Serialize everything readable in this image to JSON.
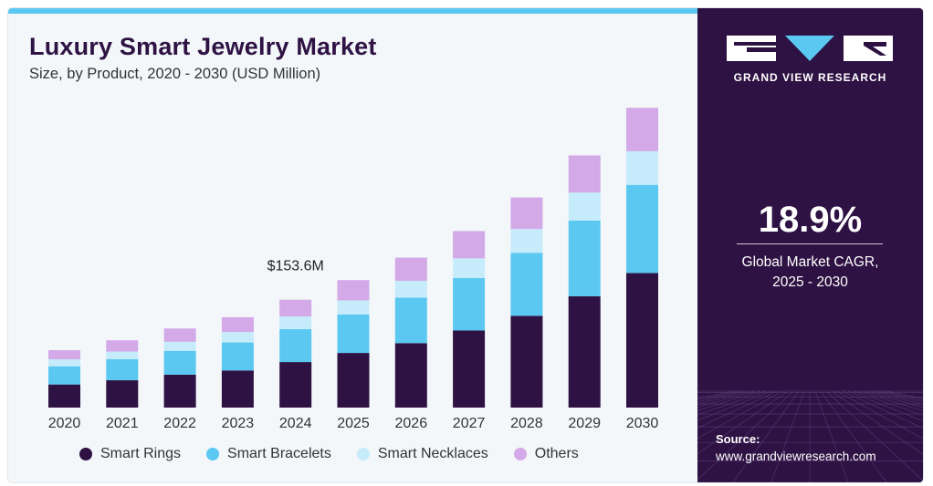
{
  "header": {
    "title": "Luxury Smart Jewelry Market",
    "subtitle": "Size, by Product, 2020 - 2030 (USD Million)"
  },
  "sidebar": {
    "brand": "GRAND VIEW RESEARCH",
    "cagr_value": "18.9%",
    "cagr_label_line1": "Global Market CAGR,",
    "cagr_label_line2": "2025 - 2030",
    "source_label": "Source:",
    "source_url": "www.grandviewresearch.com"
  },
  "colors": {
    "Smart Rings": "#2e1243",
    "Smart Bracelets": "#5bc8f1",
    "Smart Necklaces": "#c6ecfb",
    "Others": "#d3a9e8",
    "panel": "#2e1243",
    "accent": "#5bc8f1"
  },
  "chart_data": {
    "type": "bar",
    "stacked": true,
    "categories": [
      "2020",
      "2021",
      "2022",
      "2023",
      "2024",
      "2025",
      "2026",
      "2027",
      "2028",
      "2029",
      "2030"
    ],
    "series": [
      {
        "name": "Smart Rings",
        "values": [
          33,
          39,
          47,
          53,
          65,
          78,
          92,
          110,
          131,
          159,
          192
        ]
      },
      {
        "name": "Smart Bracelets",
        "values": [
          26,
          30,
          34,
          40,
          47,
          55,
          65,
          75,
          90,
          108,
          126
        ]
      },
      {
        "name": "Smart Necklaces",
        "values": [
          10,
          11,
          13,
          15,
          18,
          20,
          24,
          28,
          34,
          40,
          48
        ]
      },
      {
        "name": "Others",
        "values": [
          13,
          16,
          19,
          21,
          24,
          29,
          33,
          39,
          45,
          53,
          62
        ]
      }
    ],
    "annotations": [
      {
        "category": "2024",
        "text": "$153.6M"
      }
    ],
    "legend_position": "bottom",
    "grid": false,
    "ylim": [
      0,
      440
    ]
  }
}
